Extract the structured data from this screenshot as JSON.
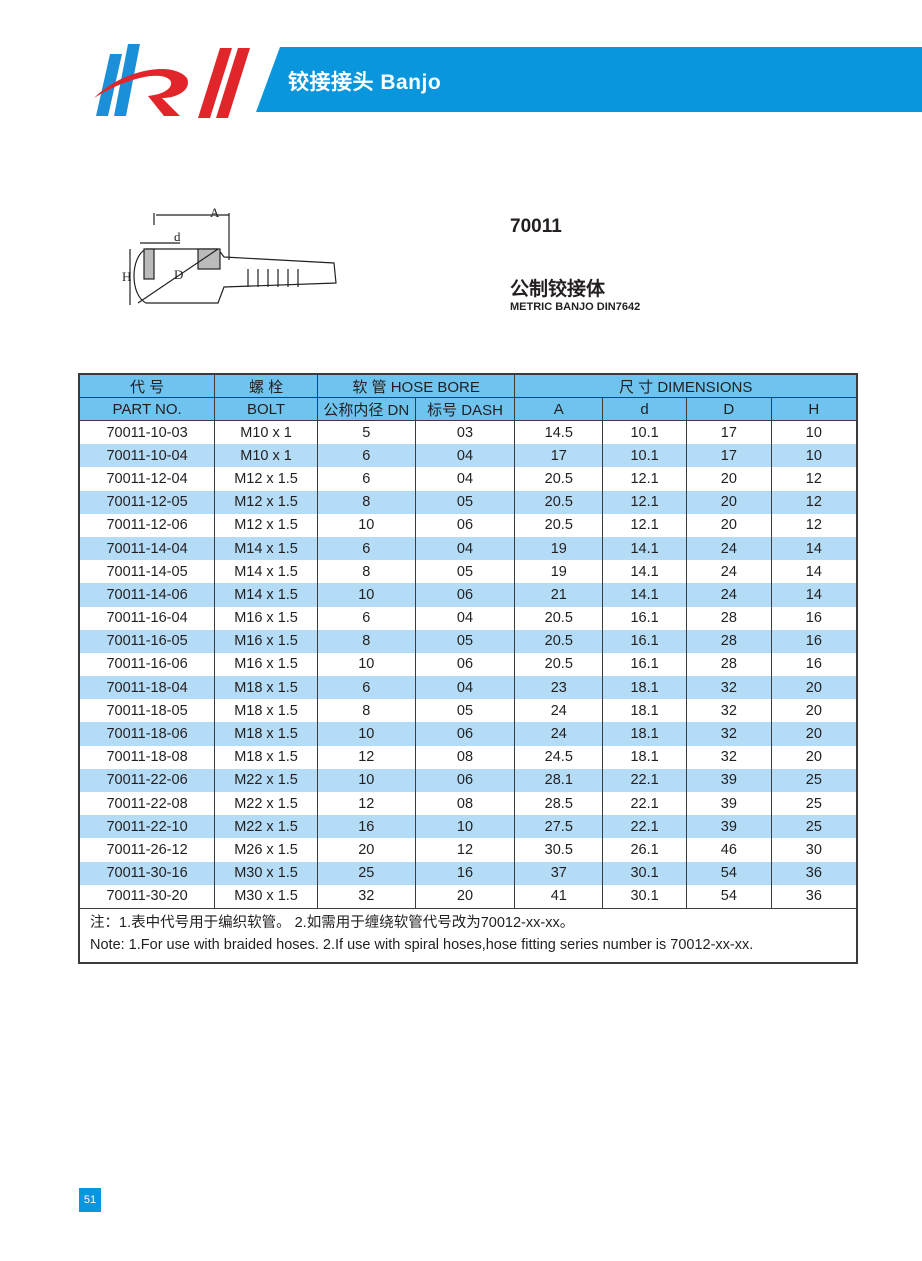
{
  "header": {
    "title": "铰接接头 Banjo",
    "brand_color": "#0a96dc",
    "logo_text": "HR"
  },
  "diagram": {
    "labels": {
      "A": "A",
      "d": "d",
      "D": "D",
      "H": "H"
    }
  },
  "product": {
    "code": "70011",
    "name_cn": "公制铰接体",
    "name_en": "METRIC BANJO DIN7642"
  },
  "table": {
    "headers": {
      "part_cn": "代 号",
      "part_en": "PART NO.",
      "bolt_cn": "螺 栓",
      "bolt_en": "BOLT",
      "hose": "软 管 HOSE BORE",
      "dn": "公称内径 DN",
      "dash": "标号 DASH",
      "dims": "尺 寸 DIMENSIONS",
      "A": "A",
      "d": "d",
      "D": "D",
      "H": "H"
    },
    "rows": [
      [
        "70011-10-03",
        "M10 x 1",
        "5",
        "03",
        "14.5",
        "10.1",
        "17",
        "10"
      ],
      [
        "70011-10-04",
        "M10 x 1",
        "6",
        "04",
        "17",
        "10.1",
        "17",
        "10"
      ],
      [
        "70011-12-04",
        "M12 x 1.5",
        "6",
        "04",
        "20.5",
        "12.1",
        "20",
        "12"
      ],
      [
        "70011-12-05",
        "M12 x 1.5",
        "8",
        "05",
        "20.5",
        "12.1",
        "20",
        "12"
      ],
      [
        "70011-12-06",
        "M12 x 1.5",
        "10",
        "06",
        "20.5",
        "12.1",
        "20",
        "12"
      ],
      [
        "70011-14-04",
        "M14 x 1.5",
        "6",
        "04",
        "19",
        "14.1",
        "24",
        "14"
      ],
      [
        "70011-14-05",
        "M14 x 1.5",
        "8",
        "05",
        "19",
        "14.1",
        "24",
        "14"
      ],
      [
        "70011-14-06",
        "M14 x 1.5",
        "10",
        "06",
        "21",
        "14.1",
        "24",
        "14"
      ],
      [
        "70011-16-04",
        "M16 x 1.5",
        "6",
        "04",
        "20.5",
        "16.1",
        "28",
        "16"
      ],
      [
        "70011-16-05",
        "M16 x 1.5",
        "8",
        "05",
        "20.5",
        "16.1",
        "28",
        "16"
      ],
      [
        "70011-16-06",
        "M16 x 1.5",
        "10",
        "06",
        "20.5",
        "16.1",
        "28",
        "16"
      ],
      [
        "70011-18-04",
        "M18 x 1.5",
        "6",
        "04",
        "23",
        "18.1",
        "32",
        "20"
      ],
      [
        "70011-18-05",
        "M18 x 1.5",
        "8",
        "05",
        "24",
        "18.1",
        "32",
        "20"
      ],
      [
        "70011-18-06",
        "M18 x 1.5",
        "10",
        "06",
        "24",
        "18.1",
        "32",
        "20"
      ],
      [
        "70011-18-08",
        "M18 x 1.5",
        "12",
        "08",
        "24.5",
        "18.1",
        "32",
        "20"
      ],
      [
        "70011-22-06",
        "M22 x 1.5",
        "10",
        "06",
        "28.1",
        "22.1",
        "39",
        "25"
      ],
      [
        "70011-22-08",
        "M22 x 1.5",
        "12",
        "08",
        "28.5",
        "22.1",
        "39",
        "25"
      ],
      [
        "70011-22-10",
        "M22 x 1.5",
        "16",
        "10",
        "27.5",
        "22.1",
        "39",
        "25"
      ],
      [
        "70011-26-12",
        "M26 x 1.5",
        "20",
        "12",
        "30.5",
        "26.1",
        "46",
        "30"
      ],
      [
        "70011-30-16",
        "M30 x 1.5",
        "25",
        "16",
        "37",
        "30.1",
        "54",
        "36"
      ],
      [
        "70011-30-20",
        "M30 x 1.5",
        "32",
        "20",
        "41",
        "30.1",
        "54",
        "36"
      ]
    ],
    "notes": {
      "cn": "注：1.表中代号用于编织软管。  2.如需用于缠绕软管代号改为70012-xx-xx。",
      "en": "Note: 1.For use with braided hoses.   2.If use with spiral hoses,hose fitting series number is 70012-xx-xx."
    }
  },
  "page_number": "51"
}
